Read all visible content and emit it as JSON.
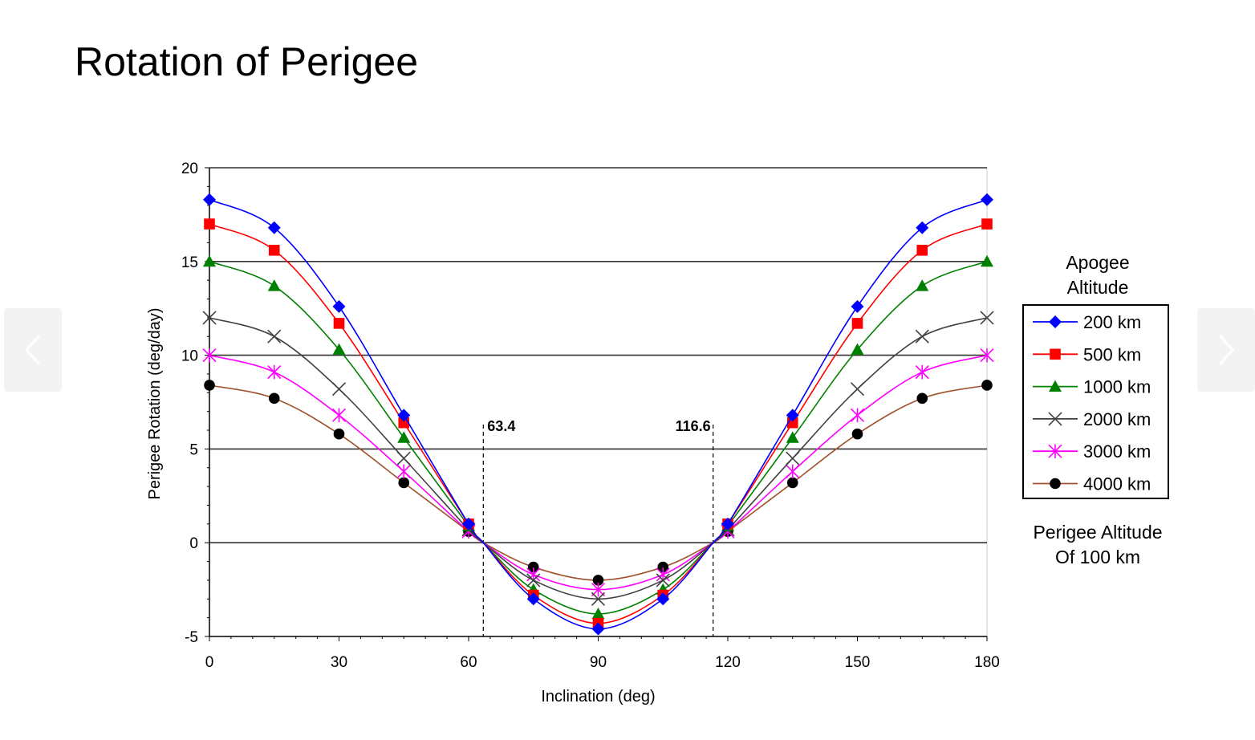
{
  "slide": {
    "title": "Rotation of Perigee"
  },
  "navigation": {
    "prev_icon": "chevron-left-icon",
    "next_icon": "chevron-right-icon"
  },
  "chart_data": {
    "type": "line",
    "xlabel": "Inclination (deg)",
    "ylabel": "Perigee Rotation (deg/day)",
    "xlim": [
      0,
      180
    ],
    "ylim": [
      -5,
      20
    ],
    "xticks": [
      0,
      30,
      60,
      90,
      120,
      150,
      180
    ],
    "yticks": [
      -5,
      0,
      5,
      10,
      15,
      20
    ],
    "grid": "horizontal",
    "reference_lines": [
      {
        "x": 63.4,
        "label": "63.4"
      },
      {
        "x": 116.6,
        "label": "116.6"
      }
    ],
    "x": [
      0,
      15,
      30,
      45,
      60,
      63.4,
      75,
      90,
      105,
      116.6,
      120,
      135,
      150,
      165,
      180
    ],
    "legend_title": "Apogee Altitude",
    "legend_title_lines": [
      "Apogee",
      "Altitude"
    ],
    "note_lines": [
      "Perigee Altitude",
      "Of 100 km"
    ],
    "legend_position": "right",
    "series": [
      {
        "name": "200 km",
        "color": "#0000ff",
        "marker": "diamond",
        "values": [
          18.3,
          16.8,
          12.6,
          6.8,
          1.0,
          0,
          -3.0,
          -4.6,
          -3.0,
          0,
          1.0,
          6.8,
          12.6,
          16.8,
          18.3
        ]
      },
      {
        "name": "500 km",
        "color": "#ff0000",
        "marker": "square",
        "values": [
          17.0,
          15.6,
          11.7,
          6.4,
          1.0,
          0,
          -2.8,
          -4.3,
          -2.8,
          0,
          1.0,
          6.4,
          11.7,
          15.6,
          17.0
        ]
      },
      {
        "name": "1000 km",
        "color": "#008000",
        "marker": "triangle",
        "values": [
          15.0,
          13.7,
          10.3,
          5.6,
          0.9,
          0,
          -2.5,
          -3.8,
          -2.5,
          0,
          0.9,
          5.6,
          10.3,
          13.7,
          15.0
        ]
      },
      {
        "name": "2000 km",
        "color": "#404040",
        "marker": "x",
        "values": [
          12.0,
          11.0,
          8.2,
          4.5,
          0.7,
          0,
          -2.0,
          -3.0,
          -2.0,
          0,
          0.7,
          4.5,
          8.2,
          11.0,
          12.0
        ]
      },
      {
        "name": "3000 km",
        "color": "#ff00ff",
        "marker": "star",
        "values": [
          10.0,
          9.1,
          6.8,
          3.8,
          0.6,
          0,
          -1.7,
          -2.5,
          -1.7,
          0,
          0.6,
          3.8,
          6.8,
          9.1,
          10.0
        ]
      },
      {
        "name": "4000 km",
        "color": "#000000",
        "line_color": "#a0522d",
        "marker": "circle",
        "values": [
          8.4,
          7.7,
          5.8,
          3.2,
          0.6,
          0,
          -1.3,
          -2.0,
          -1.3,
          0,
          0.6,
          3.2,
          5.8,
          7.7,
          8.4
        ]
      }
    ]
  }
}
